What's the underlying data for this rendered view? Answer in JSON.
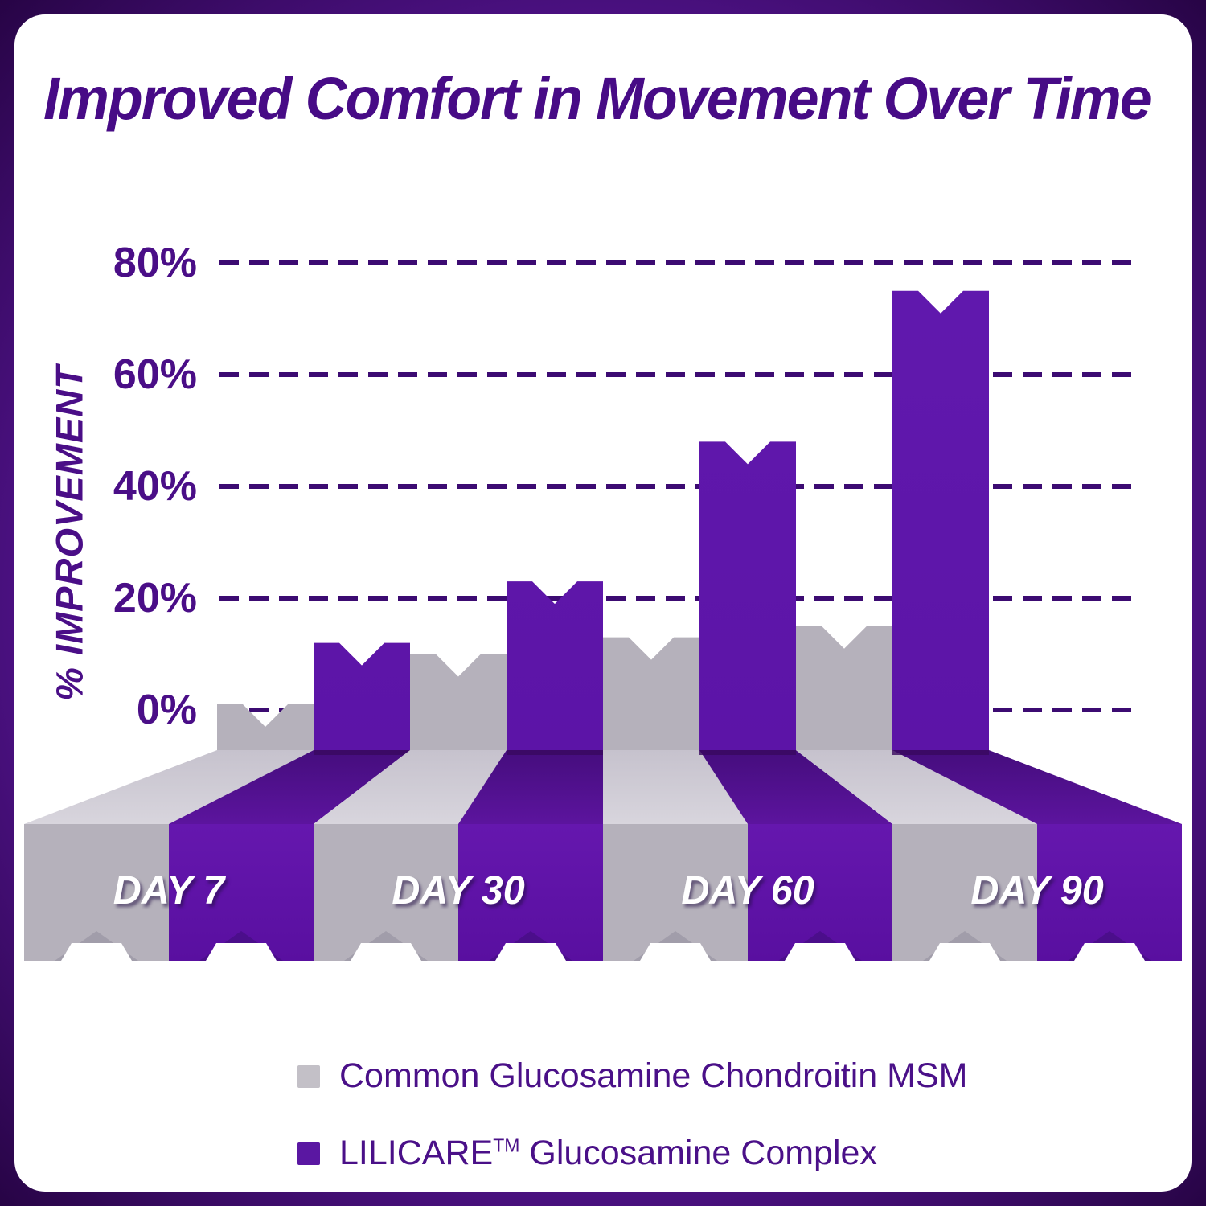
{
  "title": "Improved Comfort in Movement Over Time",
  "y_axis": {
    "label": "% IMPROVEMENT",
    "tick_labels": [
      "80%",
      "60%",
      "40%",
      "20%",
      "0%"
    ]
  },
  "chart_data": {
    "type": "bar",
    "style": "pseudo-3d extruded bars, notched tops, perspective ribbons to a striped front band",
    "categories": [
      "DAY 7",
      "DAY 30",
      "DAY 60",
      "DAY 90"
    ],
    "series": [
      {
        "name": "Common Glucosamine Chondroitin MSM",
        "color_hex": "#b5b1bb",
        "values": [
          1,
          10,
          13,
          15
        ]
      },
      {
        "name": "LILICARE™ Glucosamine Complex",
        "color_hex": "#5d16a9",
        "values": [
          12,
          23,
          48,
          75
        ]
      }
    ],
    "title": "Improved Comfort in Movement Over Time",
    "xlabel": "",
    "ylabel": "% IMPROVEMENT",
    "yticks": [
      0,
      20,
      40,
      60,
      80
    ],
    "ytick_labels": [
      "0%",
      "20%",
      "40%",
      "60%",
      "80%"
    ],
    "ylim": [
      0,
      80
    ],
    "grid": "horizontal dashed purple lines at each 20% tick",
    "legend_position": "bottom"
  },
  "legend": {
    "items": [
      {
        "label": "Common Glucosamine Chondroitin MSM",
        "swatch_hex": "#c3c0c7"
      },
      {
        "label_prefix": "LILICARE",
        "label_sup": "TM",
        "label_rest": " Glucosamine Complex",
        "swatch_hex": "#5a17a2"
      }
    ]
  },
  "colors": {
    "card": "#ffffff",
    "frame_corner": "#270445",
    "frame_mid": "#5a169b",
    "frame_center": "#8a3ec6",
    "title_text": "#470b86",
    "axis_text": "#4a0e87",
    "gridline": "#3c0b72",
    "gray_bar": "#b5b1bb",
    "gray_ribbon_back": "#c6c2cd",
    "gray_ribbon_front": "#d8d5dd",
    "gray_front": "#b5b1bb",
    "gray_notch": "#a19daa",
    "purple_bar_top": "#6119ae",
    "purple_bar_bottom": "#5c14a7",
    "purple_ribbon_back": "#450d7d",
    "purple_ribbon_front": "#5c149e",
    "purple_front_top": "#6517ae",
    "purple_front_bottom": "#590fa0",
    "purple_notch": "#4b0e8b",
    "purple_seam": "#38095f",
    "legend_text": "#4a1088",
    "day_label_text": "#ffffff"
  }
}
